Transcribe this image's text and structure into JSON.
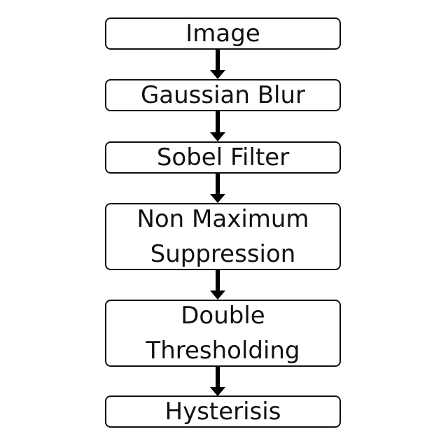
{
  "steps": [
    {
      "lines": [
        "Image"
      ]
    },
    {
      "lines": [
        "Gaussian Blur"
      ]
    },
    {
      "lines": [
        "Sobel Filter"
      ]
    },
    {
      "lines": [
        "Non Maximum",
        "Suppression"
      ]
    },
    {
      "lines": [
        "Double",
        "Thresholding"
      ]
    },
    {
      "lines": [
        "Hysterisis"
      ]
    }
  ]
}
